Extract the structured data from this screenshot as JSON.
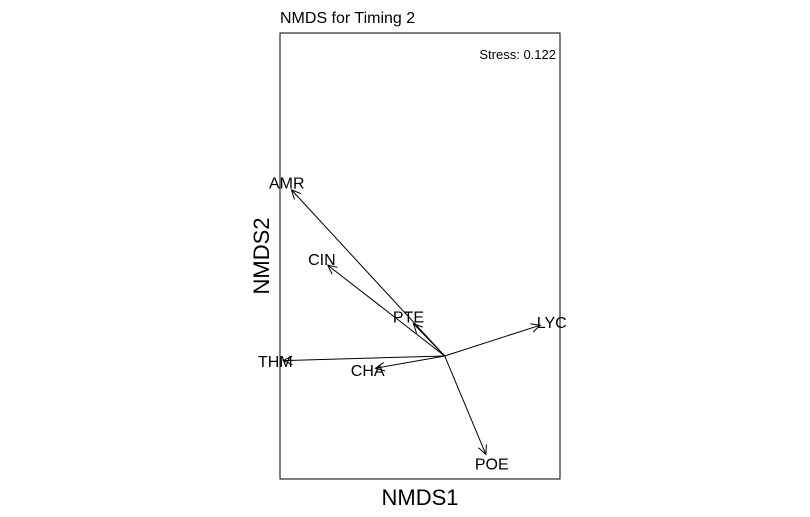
{
  "chart_data": {
    "type": "biplot",
    "title": "NMDS for Timing 2",
    "xlabel": "NMDS1",
    "ylabel": "NMDS2",
    "xlim": [
      -1.0,
      0.7
    ],
    "ylim": [
      -0.8,
      2.1
    ],
    "axes_shown": false,
    "annotation": "Stress: 0.122",
    "origin": [
      0,
      0
    ],
    "vectors": [
      {
        "label": "AMR",
        "x": -0.93,
        "y": 1.08
      },
      {
        "label": "CIN",
        "x": -0.71,
        "y": 0.59
      },
      {
        "label": "PTE",
        "x": -0.19,
        "y": 0.21
      },
      {
        "label": "LYC",
        "x": 0.58,
        "y": 0.2
      },
      {
        "label": "THM",
        "x": -0.98,
        "y": -0.03
      },
      {
        "label": "CHA",
        "x": -0.42,
        "y": -0.08
      },
      {
        "label": "POE",
        "x": 0.25,
        "y": -0.64
      }
    ]
  }
}
